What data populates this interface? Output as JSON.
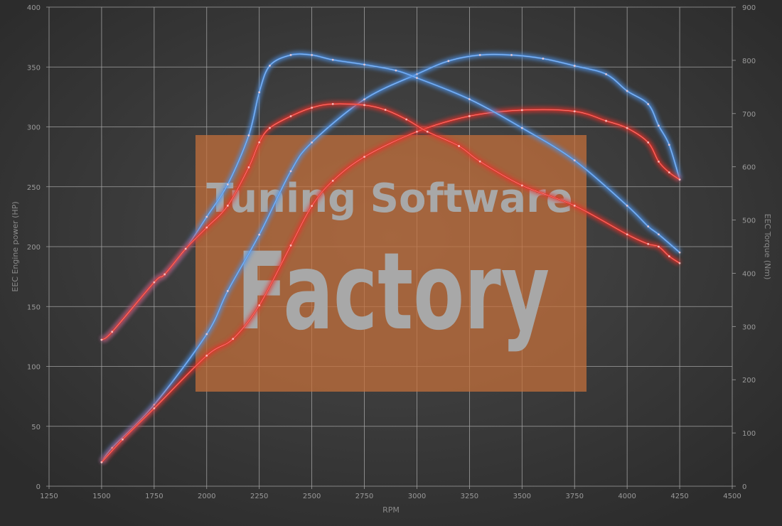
{
  "chart_data": {
    "type": "line",
    "title": "",
    "xlabel": "RPM",
    "ylabel_left": "EEC Engine power (HP)",
    "ylabel_right": "EEC Torque (Nm)",
    "xlim": [
      1250,
      4500
    ],
    "xticks": [
      1250,
      1500,
      1750,
      2000,
      2250,
      2500,
      2750,
      3000,
      3250,
      3500,
      3750,
      4000,
      4250,
      4500
    ],
    "ylim_left": [
      0,
      400
    ],
    "yticks_left": [
      0,
      50,
      100,
      150,
      200,
      250,
      300,
      350,
      400
    ],
    "ylim_right": [
      0,
      900
    ],
    "yticks_right": [
      0,
      100,
      200,
      300,
      400,
      500,
      600,
      700,
      800,
      900
    ],
    "grid": true,
    "watermark": {
      "line1": "Tuning Software",
      "line2": "Factory"
    },
    "colors": {
      "blue": "#4f93e6",
      "red": "#e8322a",
      "watermark_box": "#c7703a"
    },
    "series": [
      {
        "color": "blue",
        "axis": "left",
        "x": [
          1500,
          1550,
          1750,
          2000,
          2100,
          2250,
          2400,
          2500,
          2750,
          3000,
          3150,
          3300,
          3450,
          3600,
          3750,
          3900,
          4000,
          4100,
          4150,
          4200,
          4250
        ],
        "values": [
          20,
          32,
          68,
          127,
          163,
          210,
          263,
          287,
          323,
          344,
          355,
          360,
          360,
          357,
          351,
          344,
          330,
          319,
          301,
          285,
          256
        ]
      },
      {
        "color": "red",
        "axis": "left",
        "x": [
          1500,
          1600,
          1750,
          2000,
          2125,
          2250,
          2400,
          2500,
          2600,
          2750,
          3000,
          3250,
          3500,
          3750,
          3900,
          4000,
          4100,
          4150,
          4200,
          4250
        ],
        "values": [
          20,
          39,
          65,
          109,
          123,
          151,
          201,
          234,
          255,
          275,
          296,
          309,
          314,
          313,
          305,
          299,
          287,
          271,
          262,
          256
        ]
      },
      {
        "color": "blue",
        "axis": "right",
        "x": [
          1500,
          1550,
          1750,
          1800,
          1900,
          2000,
          2100,
          2200,
          2250,
          2300,
          2400,
          2500,
          2600,
          2750,
          2900,
          3000,
          3250,
          3500,
          3750,
          4000,
          4100,
          4150,
          4250
        ],
        "values": [
          275,
          290,
          383,
          398,
          446,
          506,
          567,
          659,
          740,
          790,
          810,
          810,
          801,
          792,
          781,
          767,
          727,
          673,
          612,
          527,
          488,
          473,
          439
        ]
      },
      {
        "color": "red",
        "axis": "right",
        "x": [
          1500,
          1550,
          1750,
          1800,
          1900,
          2000,
          2100,
          2200,
          2250,
          2300,
          2400,
          2500,
          2600,
          2750,
          2850,
          2950,
          3050,
          3200,
          3300,
          3500,
          3750,
          4000,
          4100,
          4150,
          4200,
          4250
        ],
        "values": [
          275,
          290,
          383,
          398,
          446,
          486,
          527,
          599,
          646,
          673,
          695,
          711,
          718,
          716,
          707,
          689,
          666,
          639,
          610,
          565,
          527,
          473,
          455,
          450,
          432,
          419
        ]
      }
    ]
  }
}
